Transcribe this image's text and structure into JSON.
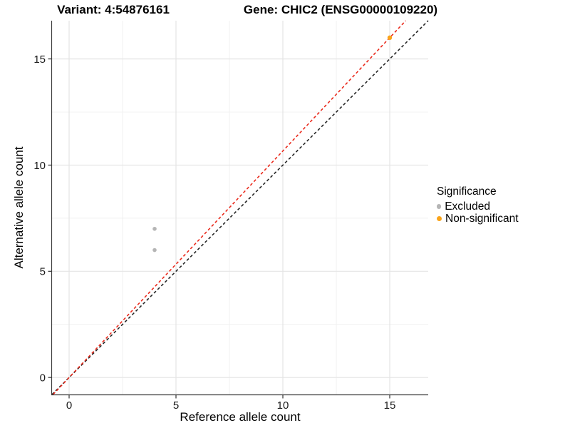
{
  "chart_data": {
    "type": "scatter",
    "titles": {
      "variant": "Variant: 4:54876161",
      "gene": "Gene: CHIC2 (ENSG00000109220)"
    },
    "xlabel": "Reference allele count",
    "ylabel": "Alternative allele count",
    "axes": {
      "xlim": [
        -0.8,
        16.8
      ],
      "ylim": [
        -0.8,
        16.8
      ],
      "x_major_ticks": [
        0,
        5,
        10,
        15
      ],
      "y_major_ticks": [
        0,
        5,
        10,
        15
      ],
      "x_minor_ticks": [
        2.5,
        7.5,
        12.5
      ],
      "y_minor_ticks": [
        2.5,
        7.5,
        12.5
      ]
    },
    "grid": {
      "major_color": "#e4e4e4",
      "minor_color": "#f0f0f0"
    },
    "axis_color": "#3c3c3c",
    "tick_label_color": "#1a1a1a",
    "series": [
      {
        "name": "Excluded",
        "color": "#b5b5b5",
        "radius": 2.8,
        "points": [
          {
            "x": 4,
            "y": 7
          },
          {
            "x": 4,
            "y": 6
          }
        ]
      },
      {
        "name": "Non-significant",
        "color": "#FAA41A",
        "radius": 3.2,
        "points": [
          {
            "x": 15,
            "y": 16
          }
        ]
      }
    ],
    "lines": [
      {
        "name": "identity-line",
        "slope": 1.0,
        "intercept": 0,
        "color": "#262626",
        "dash": true
      },
      {
        "name": "allelic-ratio-line",
        "slope": 1.0667,
        "intercept": 0,
        "color": "#ea2a1c",
        "dash": true
      }
    ],
    "legend": {
      "title": "Significance",
      "position": "right",
      "items": [
        {
          "label": "Excluded",
          "color": "#b5b5b5"
        },
        {
          "label": "Non-significant",
          "color": "#FAA41A"
        }
      ]
    }
  }
}
